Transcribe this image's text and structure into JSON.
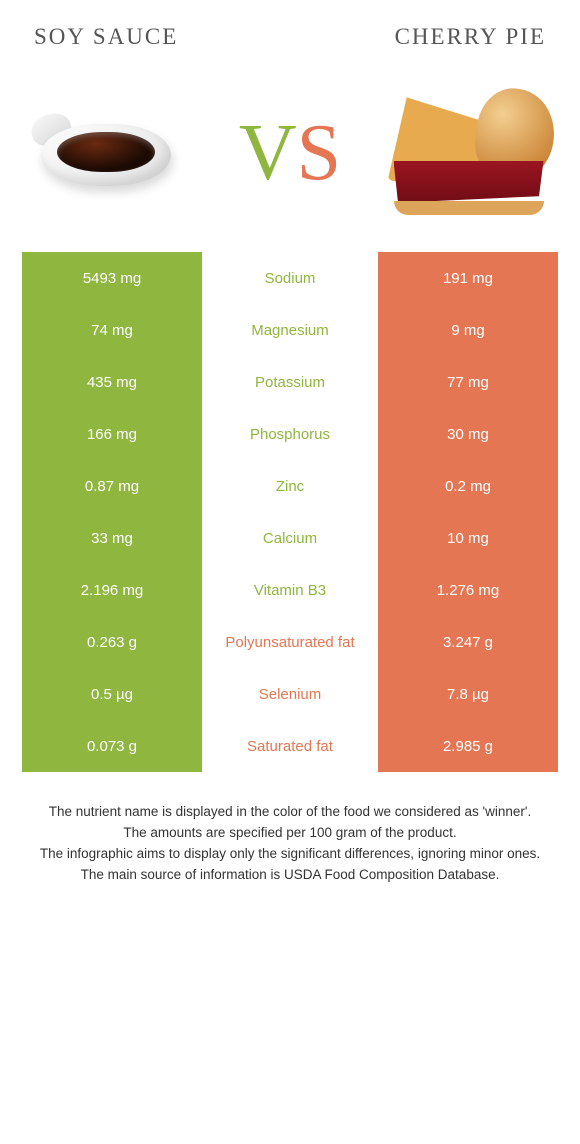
{
  "header": {
    "left_title": "Soy sauce",
    "right_title": "Cherry pie",
    "vs_v": "V",
    "vs_s": "S"
  },
  "colors": {
    "left": "#8fb63f",
    "right": "#e57653",
    "text": "#333333",
    "background": "#ffffff"
  },
  "comparison": {
    "type": "table",
    "rows": [
      {
        "left": "5493 mg",
        "label": "Sodium",
        "right": "191 mg",
        "winner": "left"
      },
      {
        "left": "74 mg",
        "label": "Magnesium",
        "right": "9 mg",
        "winner": "left"
      },
      {
        "left": "435 mg",
        "label": "Potassium",
        "right": "77 mg",
        "winner": "left"
      },
      {
        "left": "166 mg",
        "label": "Phosphorus",
        "right": "30 mg",
        "winner": "left"
      },
      {
        "left": "0.87 mg",
        "label": "Zinc",
        "right": "0.2 mg",
        "winner": "left"
      },
      {
        "left": "33 mg",
        "label": "Calcium",
        "right": "10 mg",
        "winner": "left"
      },
      {
        "left": "2.196 mg",
        "label": "Vitamin B3",
        "right": "1.276 mg",
        "winner": "left"
      },
      {
        "left": "0.263 g",
        "label": "Polyunsaturated fat",
        "right": "3.247 g",
        "winner": "right"
      },
      {
        "left": "0.5 µg",
        "label": "Selenium",
        "right": "7.8 µg",
        "winner": "right"
      },
      {
        "left": "0.073 g",
        "label": "Saturated fat",
        "right": "2.985 g",
        "winner": "right"
      }
    ]
  },
  "footer": {
    "line1": "The nutrient name is displayed in the color of the food we considered as 'winner'.",
    "line2": "The amounts are specified per 100 gram of the product.",
    "line3": "The infographic aims to display only the significant differences, ignoring minor ones.",
    "line4": "The main source of information is USDA Food Composition Database."
  }
}
